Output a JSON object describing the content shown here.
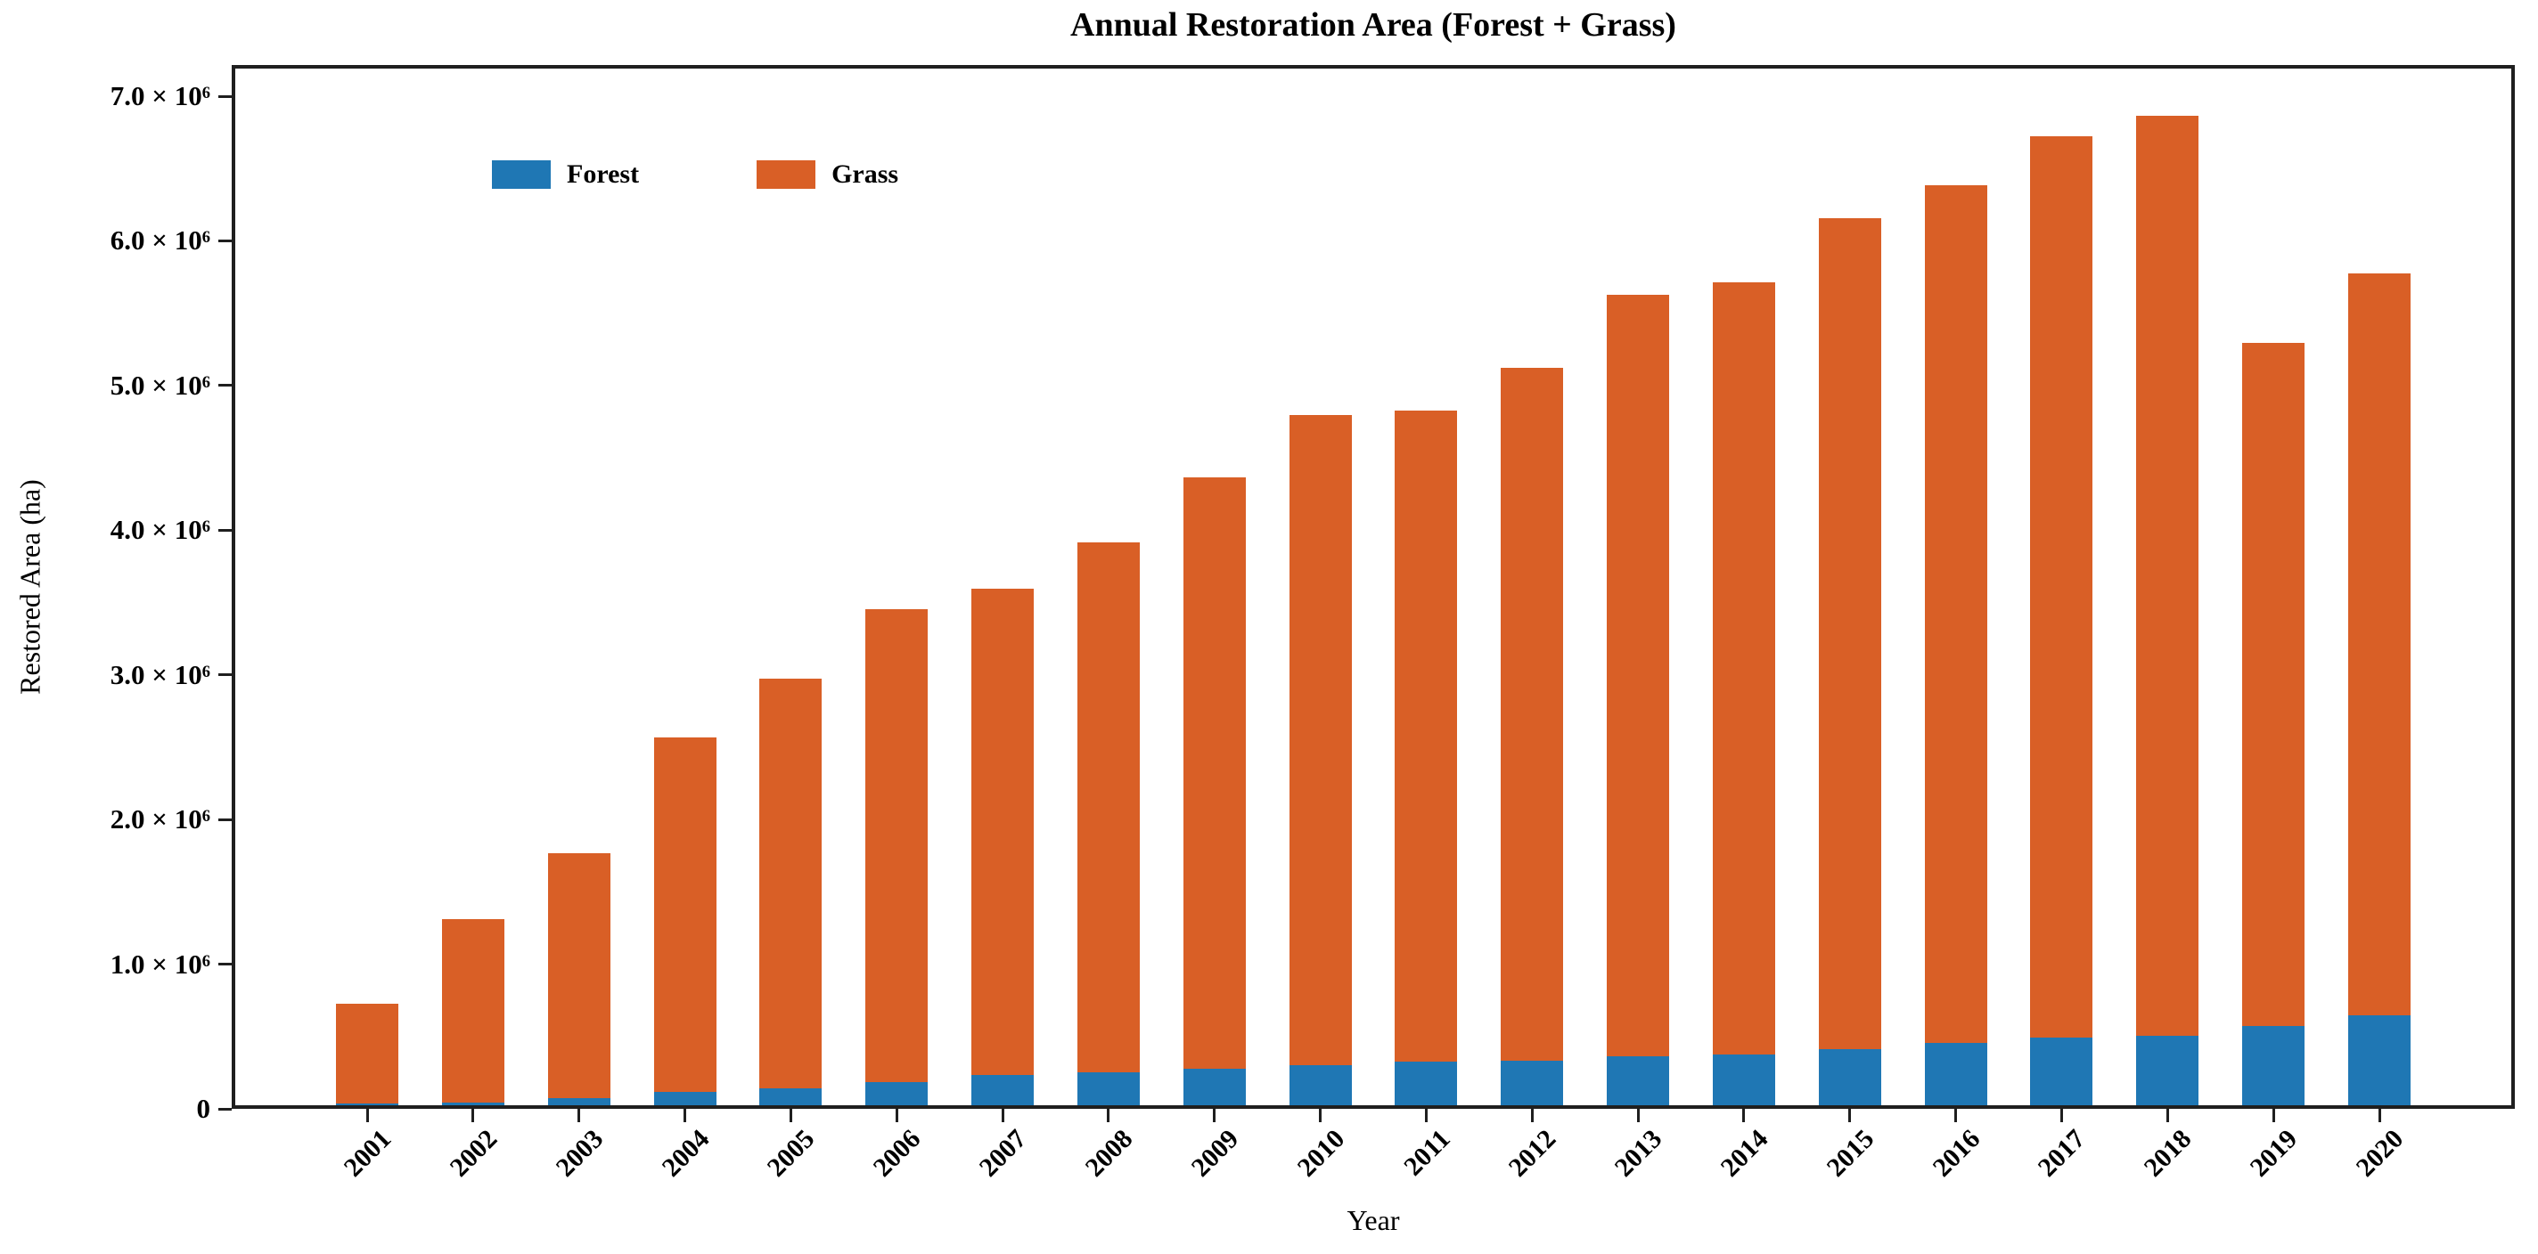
{
  "title": "Annual Restoration Area (Forest + Grass)",
  "xlabel": "Year",
  "ylabel": "Restored Area (ha)",
  "legend": {
    "items": [
      {
        "label": "Forest",
        "color": "#1f77b4"
      },
      {
        "label": "Grass",
        "color": "#d95f26"
      }
    ],
    "position": "upper left"
  },
  "chart_data": {
    "type": "bar",
    "stacked": true,
    "title": "Annual Restoration Area (Forest + Grass)",
    "xlabel": "Year",
    "ylabel": "Restored Area (ha)",
    "categories": [
      "2001",
      "2002",
      "2003",
      "2004",
      "2005",
      "2006",
      "2007",
      "2008",
      "2009",
      "2010",
      "2011",
      "2012",
      "2013",
      "2014",
      "2015",
      "2016",
      "2017",
      "2018",
      "2019",
      "2020"
    ],
    "series": [
      {
        "name": "Forest",
        "color": "#1f77b4",
        "values": [
          10000,
          20000,
          50000,
          90000,
          120000,
          160000,
          210000,
          230000,
          250000,
          280000,
          300000,
          310000,
          340000,
          350000,
          390000,
          430000,
          470000,
          480000,
          550000,
          620000
        ]
      },
      {
        "name": "Grass",
        "color": "#d95f26",
        "values": [
          690000,
          1270000,
          1690000,
          2450000,
          2830000,
          3270000,
          3360000,
          3660000,
          4090000,
          4490000,
          4500000,
          4790000,
          5260000,
          5340000,
          5740000,
          5930000,
          6230000,
          6360000,
          4720000,
          5130000
        ]
      }
    ],
    "totals": [
      700000,
      1290000,
      1740000,
      2540000,
      2950000,
      3430000,
      3570000,
      3890000,
      4340000,
      4770000,
      4800000,
      5100000,
      5600000,
      5690000,
      6130000,
      6360000,
      6700000,
      6840000,
      5270000,
      5750000
    ],
    "ylim": [
      0,
      7000000
    ],
    "yticks": {
      "values": [
        0,
        1000000,
        2000000,
        3000000,
        4000000,
        5000000,
        6000000,
        7000000
      ],
      "labels": [
        "0",
        "1.0 × 10⁶",
        "2.0 × 10⁶",
        "3.0 × 10⁶",
        "4.0 × 10⁶",
        "5.0 × 10⁶",
        "6.0 × 10⁶",
        "7.0 × 10⁶"
      ]
    },
    "grid": false,
    "legend_position": "upper left"
  }
}
